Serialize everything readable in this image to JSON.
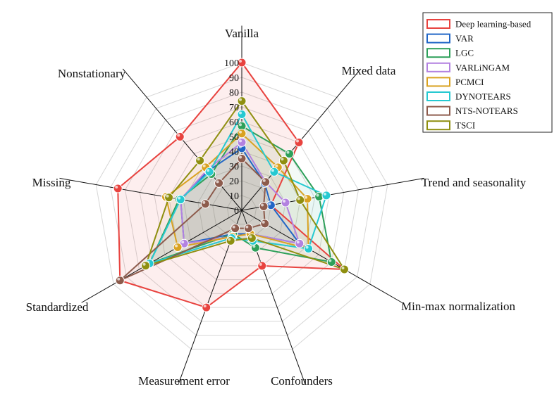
{
  "chart_data": {
    "type": "radar",
    "axes": [
      "Vanilla",
      "Mixed data",
      "Trend and seasonality",
      "Min-max normalization",
      "Confounders",
      "Measurement error",
      "Standardized",
      "Missing",
      "Nonstationary"
    ],
    "rlim": [
      0,
      100
    ],
    "ticks": [
      "0",
      "10",
      "20",
      "30",
      "40",
      "50",
      "60",
      "70",
      "80",
      "90",
      "100"
    ],
    "grid": true,
    "legend_position": "top-right",
    "series": [
      {
        "name": "Deep learning-based",
        "color": "#e8433f",
        "fill": true,
        "values": [
          100,
          60,
          20,
          80,
          40,
          70,
          95,
          85,
          65
        ]
      },
      {
        "name": "VAR",
        "color": "#2166c6",
        "fill": false,
        "values": [
          42,
          24,
          20,
          45,
          17,
          17,
          45,
          42,
          35
        ]
      },
      {
        "name": "LGC",
        "color": "#2ea05a",
        "fill": false,
        "values": [
          57,
          50,
          53,
          70,
          27,
          17,
          72,
          43,
          32
        ]
      },
      {
        "name": "VARLiNGAM",
        "color": "#b382e0",
        "fill": false,
        "values": [
          46,
          25,
          30,
          45,
          17,
          19,
          45,
          42,
          36
        ]
      },
      {
        "name": "PCMCI",
        "color": "#d9a221",
        "fill": false,
        "values": [
          52,
          38,
          45,
          52,
          17,
          19,
          50,
          52,
          38
        ]
      },
      {
        "name": "DYNOTEARS",
        "color": "#26c9d1",
        "fill": false,
        "values": [
          65,
          34,
          58,
          52,
          22,
          20,
          72,
          42,
          34
        ]
      },
      {
        "name": "NTS-NOTEARS",
        "color": "#8d5b4c",
        "fill": false,
        "values": [
          35,
          25,
          15,
          18,
          13,
          13,
          95,
          25,
          24
        ]
      },
      {
        "name": "TSCI",
        "color": "#8f8f10",
        "fill": false,
        "values": [
          74,
          44,
          40,
          80,
          20,
          22,
          75,
          50,
          44
        ]
      }
    ]
  }
}
